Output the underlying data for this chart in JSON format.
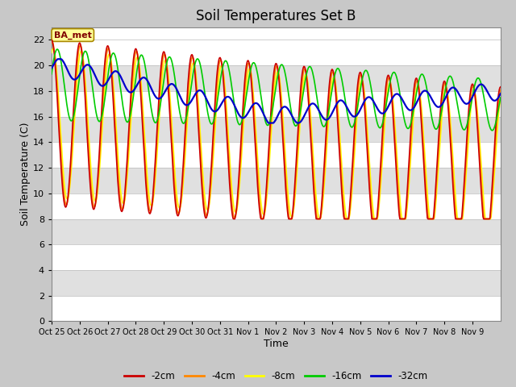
{
  "title": "Soil Temperatures Set B",
  "xlabel": "Time",
  "ylabel": "Soil Temperature (C)",
  "ylim": [
    0,
    23
  ],
  "yticks": [
    0,
    2,
    4,
    6,
    8,
    10,
    12,
    14,
    16,
    18,
    20,
    22
  ],
  "xtick_labels": [
    "Oct 25",
    "Oct 26",
    "Oct 27",
    "Oct 28",
    "Oct 29",
    "Oct 30",
    "Oct 31",
    "Nov 1",
    "Nov 2",
    "Nov 3",
    "Nov 4",
    "Nov 5",
    "Nov 6",
    "Nov 7",
    "Nov 8",
    "Nov 9"
  ],
  "legend_labels": [
    "-2cm",
    "-4cm",
    "-8cm",
    "-16cm",
    "-32cm"
  ],
  "line_colors": [
    "#cc0000",
    "#ff8800",
    "#ffff00",
    "#00cc00",
    "#0000cc"
  ],
  "plot_bg_color": "#ffffff",
  "band_colors": [
    "#ffffff",
    "#e0e0e0"
  ],
  "fig_bg_color": "#c8c8c8",
  "annotation_text": "BA_met",
  "annotation_bg": "#ffff99",
  "annotation_border": "#aa8800",
  "title_fontsize": 12,
  "axis_label_fontsize": 9,
  "tick_fontsize": 8
}
